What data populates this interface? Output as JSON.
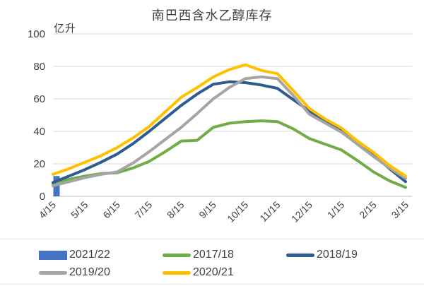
{
  "chart": {
    "title": "南巴西含水乙醇库存",
    "y_unit_label": "亿升"
  },
  "chart_data": {
    "type": "line",
    "title": "南巴西含水乙醇库存",
    "ylabel": "亿升",
    "ylim": [
      0,
      100
    ],
    "y_ticks": [
      0,
      20,
      40,
      60,
      80,
      100
    ],
    "grid": "horizontal",
    "legend_position": "bottom",
    "x_tick_labels": [
      "4/15",
      "5/15",
      "6/15",
      "7/15",
      "8/15",
      "9/15",
      "10/15",
      "11/15",
      "12/15",
      "1/15",
      "2/15",
      "3/15"
    ],
    "x": [
      "4/15",
      "5/1",
      "5/15",
      "6/1",
      "6/15",
      "7/1",
      "7/15",
      "8/1",
      "8/15",
      "9/1",
      "9/15",
      "10/1",
      "10/15",
      "11/1",
      "11/15",
      "12/1",
      "12/15",
      "1/1",
      "1/15",
      "2/1",
      "2/15",
      "3/1",
      "3/15"
    ],
    "series": [
      {
        "name": "2021/22",
        "type": "bar",
        "color": "#4472C4",
        "x": "4/15",
        "value": 12.5
      },
      {
        "name": "2017/18",
        "type": "line",
        "color": "#70AD47",
        "values": [
          7.5,
          10.5,
          12.5,
          14,
          14.5,
          17.5,
          21.5,
          27.5,
          34,
          34.5,
          42.5,
          45,
          46,
          46.5,
          46,
          41.5,
          35.5,
          32,
          28.5,
          22,
          15,
          9.5,
          5.5
        ]
      },
      {
        "name": "2018/19",
        "type": "line",
        "color": "#2F5B8F",
        "values": [
          8.5,
          12.5,
          16.5,
          21,
          26,
          32.5,
          40,
          48,
          56,
          63,
          69,
          70.5,
          70,
          68.5,
          66.5,
          59.5,
          52.5,
          46.5,
          40.5,
          33,
          25.5,
          17,
          9
        ]
      },
      {
        "name": "2019/20",
        "type": "line",
        "color": "#A5A5A5",
        "values": [
          6.5,
          9,
          11.5,
          13.5,
          15,
          20.5,
          27.5,
          35,
          42.5,
          51,
          60,
          67,
          72.5,
          73.5,
          72.5,
          62,
          50.5,
          45,
          39.5,
          32,
          24.5,
          17.5,
          11
        ]
      },
      {
        "name": "2020/21",
        "type": "line",
        "color": "#FFC000",
        "values": [
          13.5,
          17,
          21,
          25,
          30,
          36,
          43,
          52,
          61,
          67,
          73.5,
          78,
          81,
          77.5,
          75.5,
          65,
          54,
          47.5,
          42,
          34,
          27,
          19,
          12.5
        ]
      }
    ]
  },
  "legend": {
    "rows": [
      [
        {
          "label": "2021/22",
          "swatch": "bar",
          "color": "#4472C4"
        },
        {
          "label": "2017/18",
          "swatch": "line",
          "color": "#70AD47"
        },
        {
          "label": "2018/19",
          "swatch": "line",
          "color": "#2F5B8F"
        }
      ],
      [
        {
          "label": "2019/20",
          "swatch": "line",
          "color": "#A5A5A5"
        },
        {
          "label": "2020/21",
          "swatch": "line",
          "color": "#FFC000"
        }
      ]
    ]
  },
  "style": {
    "gridline_color": "#D9D9D9",
    "axis_line_color": "#BFBFBF",
    "tick_text_color": "#404040",
    "bar_color": "#4472C4"
  }
}
